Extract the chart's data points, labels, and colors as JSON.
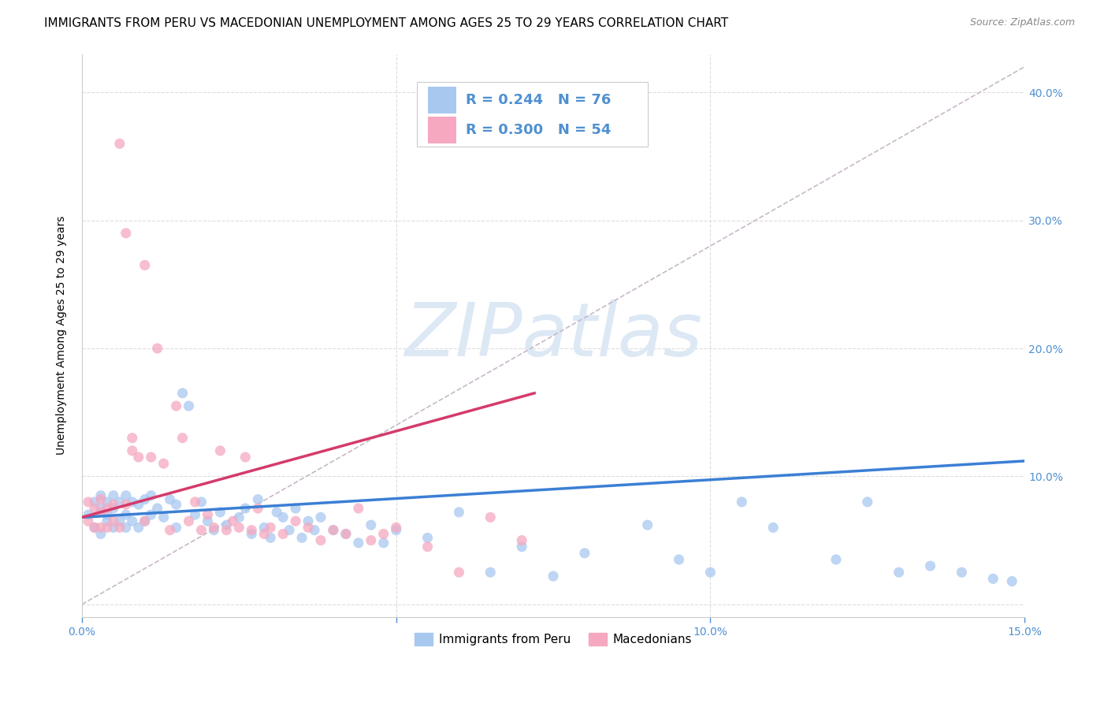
{
  "title": "IMMIGRANTS FROM PERU VS MACEDONIAN UNEMPLOYMENT AMONG AGES 25 TO 29 YEARS CORRELATION CHART",
  "source": "Source: ZipAtlas.com",
  "ylabel": "Unemployment Among Ages 25 to 29 years",
  "legend_blue_label": "Immigrants from Peru",
  "legend_pink_label": "Macedonians",
  "legend_blue_r": "R = 0.244",
  "legend_blue_n": "N = 76",
  "legend_pink_r": "R = 0.300",
  "legend_pink_n": "N = 54",
  "xlim": [
    0.0,
    0.15
  ],
  "ylim": [
    -0.01,
    0.43
  ],
  "yticks": [
    0.0,
    0.1,
    0.2,
    0.3,
    0.4
  ],
  "ytick_labels": [
    "",
    "10.0%",
    "20.0%",
    "30.0%",
    "40.0%"
  ],
  "xticks": [
    0.0,
    0.05,
    0.1,
    0.15
  ],
  "xtick_labels": [
    "0.0%",
    "",
    "10.0%",
    "15.0%"
  ],
  "blue_color": "#A8C8F0",
  "pink_color": "#F5A8C0",
  "trend_blue_color": "#3B7FD4",
  "trend_pink_color": "#D43B6A",
  "dashed_line_color": "#C8B8C8",
  "watermark_text": "ZIPatlas",
  "watermark_color": "#DDE8F5",
  "blue_scatter_x": [
    0.001,
    0.002,
    0.002,
    0.003,
    0.003,
    0.003,
    0.004,
    0.004,
    0.004,
    0.005,
    0.005,
    0.005,
    0.006,
    0.006,
    0.007,
    0.007,
    0.007,
    0.008,
    0.008,
    0.009,
    0.009,
    0.01,
    0.01,
    0.011,
    0.011,
    0.012,
    0.013,
    0.014,
    0.015,
    0.015,
    0.016,
    0.017,
    0.018,
    0.019,
    0.02,
    0.021,
    0.022,
    0.023,
    0.025,
    0.026,
    0.027,
    0.028,
    0.029,
    0.03,
    0.031,
    0.032,
    0.033,
    0.034,
    0.035,
    0.036,
    0.037,
    0.038,
    0.04,
    0.042,
    0.044,
    0.046,
    0.048,
    0.05,
    0.055,
    0.06,
    0.065,
    0.07,
    0.075,
    0.08,
    0.09,
    0.095,
    0.1,
    0.105,
    0.11,
    0.12,
    0.125,
    0.13,
    0.135,
    0.14,
    0.145,
    0.148
  ],
  "blue_scatter_y": [
    0.07,
    0.06,
    0.08,
    0.055,
    0.075,
    0.085,
    0.065,
    0.07,
    0.08,
    0.06,
    0.075,
    0.085,
    0.065,
    0.08,
    0.06,
    0.07,
    0.085,
    0.065,
    0.08,
    0.06,
    0.078,
    0.065,
    0.082,
    0.07,
    0.085,
    0.075,
    0.068,
    0.082,
    0.06,
    0.078,
    0.165,
    0.155,
    0.07,
    0.08,
    0.065,
    0.058,
    0.072,
    0.062,
    0.068,
    0.075,
    0.055,
    0.082,
    0.06,
    0.052,
    0.072,
    0.068,
    0.058,
    0.075,
    0.052,
    0.065,
    0.058,
    0.068,
    0.058,
    0.055,
    0.048,
    0.062,
    0.048,
    0.058,
    0.052,
    0.072,
    0.025,
    0.045,
    0.022,
    0.04,
    0.062,
    0.035,
    0.025,
    0.08,
    0.06,
    0.035,
    0.08,
    0.025,
    0.03,
    0.025,
    0.02,
    0.018
  ],
  "pink_scatter_x": [
    0.001,
    0.001,
    0.002,
    0.002,
    0.003,
    0.003,
    0.003,
    0.004,
    0.004,
    0.005,
    0.005,
    0.006,
    0.006,
    0.007,
    0.007,
    0.008,
    0.008,
    0.009,
    0.01,
    0.01,
    0.011,
    0.012,
    0.013,
    0.014,
    0.015,
    0.016,
    0.017,
    0.018,
    0.019,
    0.02,
    0.021,
    0.022,
    0.023,
    0.024,
    0.025,
    0.026,
    0.027,
    0.028,
    0.029,
    0.03,
    0.032,
    0.034,
    0.036,
    0.038,
    0.04,
    0.042,
    0.044,
    0.046,
    0.048,
    0.05,
    0.055,
    0.06,
    0.065,
    0.07
  ],
  "pink_scatter_y": [
    0.065,
    0.08,
    0.06,
    0.075,
    0.06,
    0.072,
    0.082,
    0.06,
    0.075,
    0.065,
    0.078,
    0.36,
    0.06,
    0.078,
    0.29,
    0.12,
    0.13,
    0.115,
    0.265,
    0.065,
    0.115,
    0.2,
    0.11,
    0.058,
    0.155,
    0.13,
    0.065,
    0.08,
    0.058,
    0.07,
    0.06,
    0.12,
    0.058,
    0.065,
    0.06,
    0.115,
    0.058,
    0.075,
    0.055,
    0.06,
    0.055,
    0.065,
    0.06,
    0.05,
    0.058,
    0.055,
    0.075,
    0.05,
    0.055,
    0.06,
    0.045,
    0.025,
    0.068,
    0.05
  ],
  "blue_trend_x": [
    0.0,
    0.15
  ],
  "blue_trend_y": [
    0.068,
    0.112
  ],
  "pink_trend_x": [
    0.0,
    0.072
  ],
  "pink_trend_y": [
    0.068,
    0.165
  ],
  "dashed_trend_x": [
    0.0,
    0.15
  ],
  "dashed_trend_y": [
    0.0,
    0.42
  ],
  "background_color": "#FFFFFF",
  "grid_color": "#DDDDDD",
  "title_fontsize": 11,
  "axis_label_fontsize": 10,
  "tick_fontsize": 10,
  "tick_color": "#5090D0",
  "legend_fontsize": 13
}
